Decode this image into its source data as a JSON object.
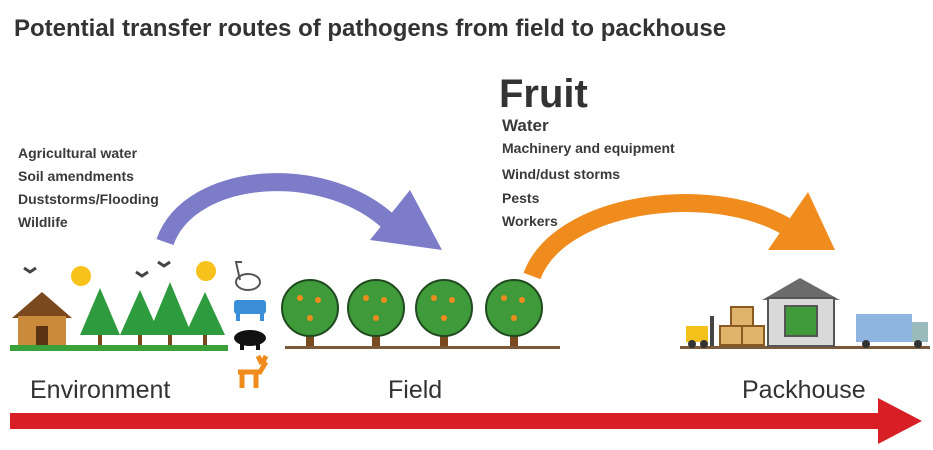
{
  "title": "Potential transfer routes of pathogens from field to packhouse",
  "environment_sources": [
    "Agricultural water",
    "Soil amendments",
    "Duststorms/Flooding",
    "Wildlife"
  ],
  "fruit": {
    "heading": "Fruit",
    "sources": [
      "Water",
      "Machinery and equipment",
      "Wind/dust storms",
      "Pests",
      "Workers"
    ]
  },
  "stages": [
    "Environment",
    "Field",
    "Packhouse"
  ]
}
